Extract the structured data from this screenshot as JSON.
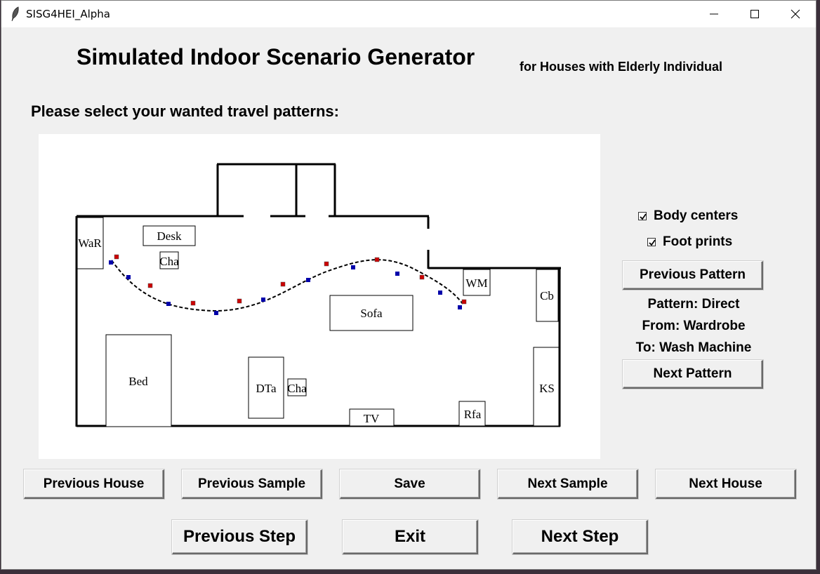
{
  "window": {
    "title": "SISG4HEI_Alpha",
    "icon": "feather-icon"
  },
  "header": {
    "title": "Simulated Indoor Scenario Generator",
    "subtitle": "for Houses with Elderly Individual"
  },
  "prompt": "Please select your wanted travel patterns:",
  "floorplan": {
    "furniture": {
      "war": "WaR",
      "desk": "Desk",
      "chair_top": "Cha",
      "wm": "WM",
      "cb": "Cb",
      "sofa": "Sofa",
      "bed": "Bed",
      "dta": "DTa",
      "chair_bottom": "Cha",
      "tv": "TV",
      "rfa": "Rfa",
      "ks": "KS"
    },
    "colors": {
      "body_center": "#0000aa",
      "foot_print": "#cc0000",
      "walls": "#000000"
    }
  },
  "options": {
    "body_centers": {
      "label": "Body centers",
      "checked": true
    },
    "foot_prints": {
      "label": "Foot prints",
      "checked": true
    }
  },
  "pattern_nav": {
    "previous": "Previous Pattern",
    "next": "Next Pattern",
    "pattern": "Pattern: Direct",
    "from": "From: Wardrobe",
    "to": "To: Wash Machine"
  },
  "bottom_row": {
    "previous_house": "Previous House",
    "previous_sample": "Previous Sample",
    "save": "Save",
    "next_sample": "Next Sample",
    "next_house": "Next House"
  },
  "step_row": {
    "previous_step": "Previous Step",
    "exit": "Exit",
    "next_step": "Next Step"
  }
}
